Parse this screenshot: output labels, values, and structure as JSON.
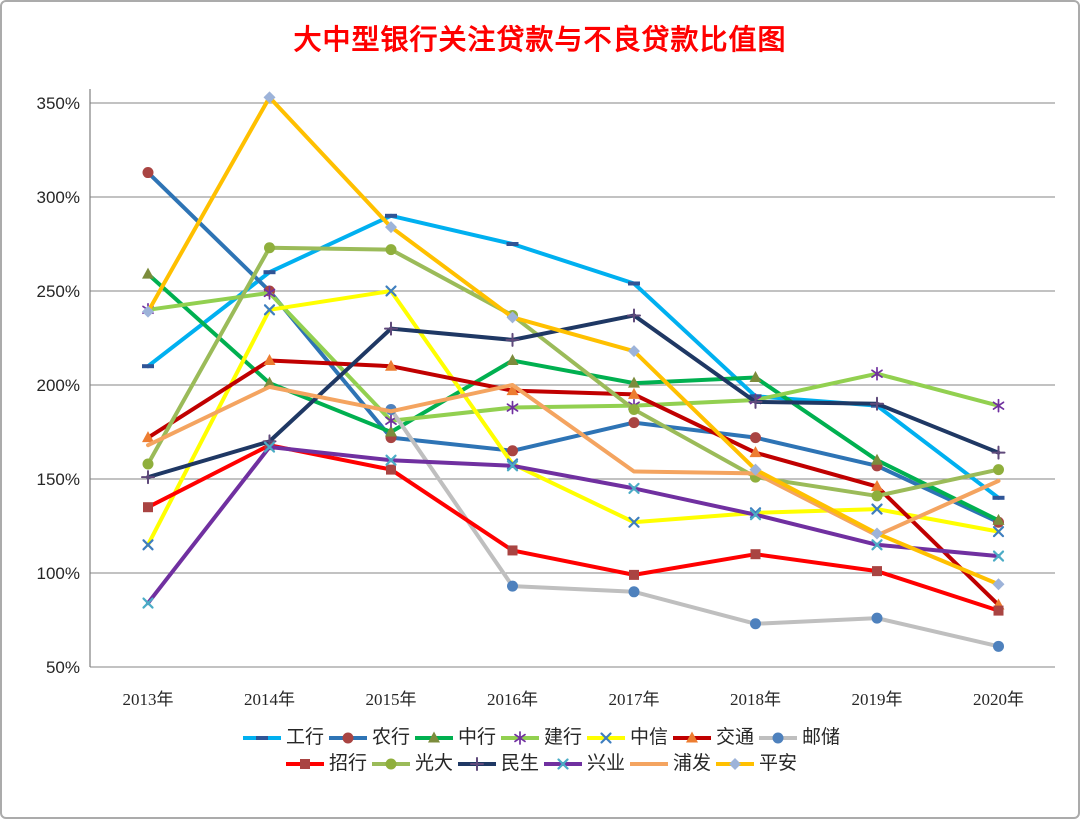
{
  "page": {
    "title": "大中型银行关注贷款与不良贷款比值图"
  },
  "chart_data": {
    "type": "line",
    "title": "大中型银行关注贷款与不良贷款比值图",
    "title_color": "#FF0000",
    "categories": [
      "2013年",
      "2014年",
      "2015年",
      "2016年",
      "2017年",
      "2018年",
      "2019年",
      "2020年"
    ],
    "y_axis": {
      "min": 50,
      "max": 350,
      "step": 50,
      "suffix": "%"
    },
    "grid": true,
    "legend_position": "bottom",
    "legend_rows": [
      [
        "工行",
        "农行",
        "中行",
        "建行",
        "中信",
        "交通",
        "邮储"
      ],
      [
        "招行",
        "光大",
        "民生",
        "兴业",
        "浦发",
        "平安"
      ]
    ],
    "series": [
      {
        "name": "工行",
        "color": "#00B0F0",
        "marker": "dash",
        "marker_color": "#2F5597",
        "values": [
          210,
          260,
          290,
          275,
          254,
          194,
          189,
          140
        ]
      },
      {
        "name": "农行",
        "color": "#2E74B5",
        "marker": "circle",
        "marker_color": "#A94442",
        "values": [
          313,
          250,
          172,
          165,
          180,
          172,
          157,
          127
        ]
      },
      {
        "name": "中行",
        "color": "#00B050",
        "marker": "triangle",
        "marker_color": "#7C8C3C",
        "values": [
          259,
          201,
          175,
          213,
          201,
          204,
          160,
          128
        ]
      },
      {
        "name": "建行",
        "color": "#92D050",
        "marker": "asterisk",
        "marker_color": "#7030A0",
        "values": [
          240,
          249,
          181,
          188,
          189,
          192,
          206,
          189
        ]
      },
      {
        "name": "中信",
        "color": "#FFFF00",
        "marker": "x",
        "marker_color": "#3E7EBF",
        "values": [
          115,
          240,
          250,
          158,
          127,
          132,
          134,
          122
        ]
      },
      {
        "name": "交通",
        "color": "#C00000",
        "marker": "triangle",
        "marker_color": "#ED7D31",
        "values": [
          172,
          213,
          210,
          197,
          195,
          164,
          146,
          83
        ]
      },
      {
        "name": "邮储",
        "color": "#BFBFBF",
        "marker": "circle",
        "marker_color": "#4E81BD",
        "values": [
          null,
          null,
          187,
          93,
          90,
          73,
          76,
          61
        ]
      },
      {
        "name": "招行",
        "color": "#FF0000",
        "marker": "square",
        "marker_color": "#A94442",
        "values": [
          135,
          168,
          155,
          112,
          99,
          110,
          101,
          80
        ]
      },
      {
        "name": "光大",
        "color": "#9BBB59",
        "marker": "circle",
        "marker_color": "#8FAF3C",
        "values": [
          158,
          273,
          272,
          237,
          187,
          151,
          141,
          155
        ]
      },
      {
        "name": "民生",
        "color": "#1F3864",
        "marker": "plus",
        "marker_color": "#604A7B",
        "values": [
          151,
          170,
          230,
          224,
          237,
          191,
          190,
          164
        ]
      },
      {
        "name": "兴业",
        "color": "#7030A0",
        "marker": "x",
        "marker_color": "#4BACC6",
        "values": [
          84,
          167,
          160,
          157,
          145,
          131,
          115,
          109
        ]
      },
      {
        "name": "浦发",
        "color": "#F4A460",
        "marker": "none",
        "marker_color": "#F4A460",
        "values": [
          168,
          199,
          186,
          200,
          154,
          153,
          120,
          149
        ]
      },
      {
        "name": "平安",
        "color": "#FFC000",
        "marker": "diamond",
        "marker_color": "#9DB3D9",
        "values": [
          239,
          353,
          284,
          236,
          218,
          155,
          121,
          94
        ]
      }
    ]
  }
}
